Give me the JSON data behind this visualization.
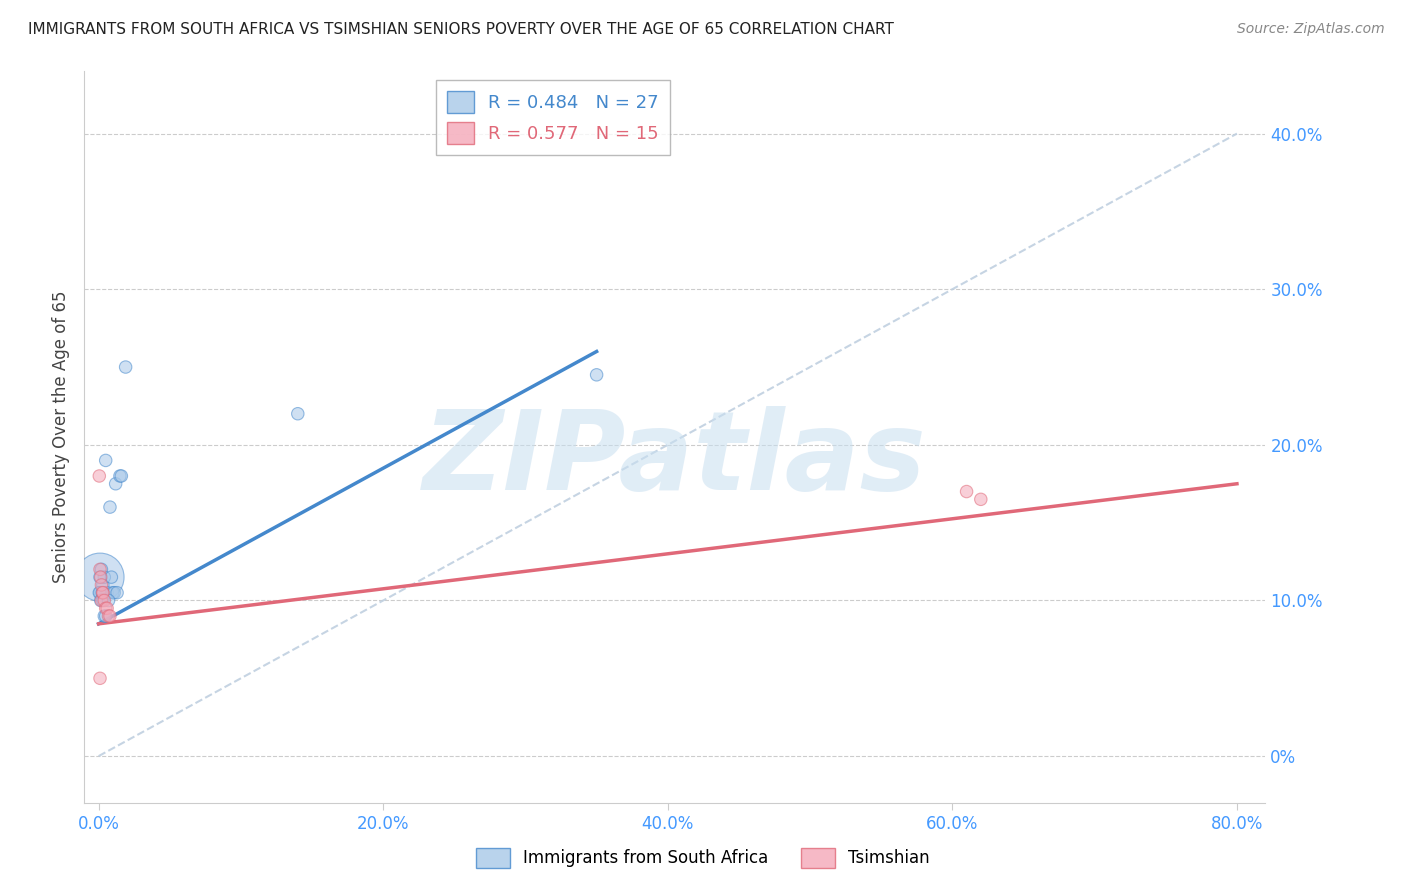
{
  "title": "IMMIGRANTS FROM SOUTH AFRICA VS TSIMSHIAN SENIORS POVERTY OVER THE AGE OF 65 CORRELATION CHART",
  "source": "Source: ZipAtlas.com",
  "ylabel_label": "Seniors Poverty Over the Age of 65",
  "legend_blue_r": "R = 0.484",
  "legend_blue_n": "N = 27",
  "legend_pink_r": "R = 0.577",
  "legend_pink_n": "N = 15",
  "blue_color": "#a8c8e8",
  "pink_color": "#f4a8b8",
  "blue_line_color": "#4488cc",
  "pink_line_color": "#e06878",
  "watermark": "ZIPatlas",
  "blue_scatter_x": [
    0.5,
    0.8,
    1.2,
    1.5,
    0.1,
    0.2,
    0.3,
    0.4,
    0.3,
    0.1,
    0.6,
    0.9,
    1.0,
    1.1,
    1.3,
    1.6,
    0.05,
    0.15,
    0.25,
    0.3,
    0.1,
    0.4,
    0.5,
    0.7,
    1.9,
    14.0,
    35.0
  ],
  "blue_scatter_y": [
    19.0,
    16.0,
    17.5,
    18.0,
    11.5,
    12.0,
    11.0,
    11.5,
    10.5,
    10.5,
    10.5,
    11.5,
    10.5,
    10.5,
    10.5,
    18.0,
    10.5,
    10.0,
    10.5,
    10.0,
    11.5,
    9.0,
    9.0,
    10.0,
    25.0,
    22.0,
    24.5
  ],
  "blue_scatter_sizes": [
    80,
    80,
    80,
    80,
    1200,
    80,
    80,
    80,
    80,
    80,
    80,
    80,
    80,
    80,
    80,
    80,
    80,
    80,
    80,
    80,
    80,
    80,
    80,
    80,
    80,
    80,
    80
  ],
  "pink_scatter_x": [
    0.05,
    0.1,
    0.2,
    0.3,
    0.15,
    0.2,
    0.3,
    0.4,
    0.5,
    0.6,
    0.7,
    0.8,
    61.0,
    62.0,
    0.1
  ],
  "pink_scatter_y": [
    18.0,
    12.0,
    10.0,
    10.5,
    11.5,
    11.0,
    10.5,
    10.0,
    9.5,
    9.5,
    9.0,
    9.0,
    17.0,
    16.5,
    5.0
  ],
  "pink_scatter_sizes": [
    80,
    80,
    80,
    80,
    80,
    80,
    80,
    80,
    80,
    80,
    80,
    80,
    80,
    80,
    80
  ],
  "blue_line_x": [
    0.0,
    35.0
  ],
  "blue_line_y": [
    8.5,
    26.0
  ],
  "pink_line_x": [
    0.0,
    80.0
  ],
  "pink_line_y": [
    8.5,
    17.5
  ],
  "diag_line_x": [
    0.0,
    80.0
  ],
  "diag_line_y": [
    0.0,
    40.0
  ],
  "xlim": [
    -1.0,
    82.0
  ],
  "ylim": [
    -3.0,
    44.0
  ],
  "xticks": [
    0.0,
    20.0,
    40.0,
    60.0,
    80.0
  ],
  "yticks": [
    0.0,
    10.0,
    20.0,
    30.0,
    40.0
  ],
  "xtick_labels": [
    "0.0%",
    "20.0%",
    "40.0%",
    "60.0%",
    "80.0%"
  ],
  "ytick_labels_right": [
    "0%",
    "10.0%",
    "20.0%",
    "30.0%",
    "40.0%"
  ]
}
